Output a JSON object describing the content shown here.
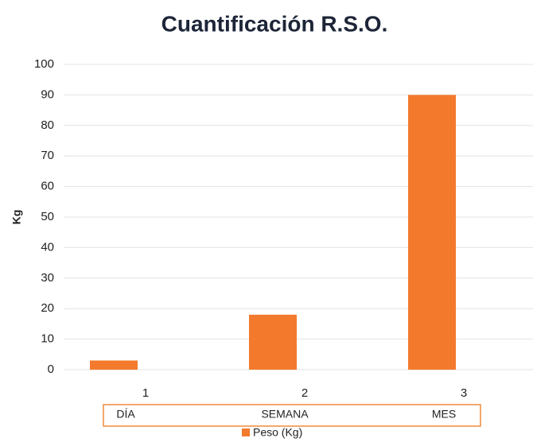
{
  "chart_data": {
    "type": "bar",
    "title": "Cuantificación R.S.O.",
    "y_label": "Kg",
    "categories": [
      "1",
      "2",
      "3"
    ],
    "category_labels": [
      "DÍA",
      "SEMANA",
      "MES"
    ],
    "series": [
      {
        "name": "Peso (Kg)",
        "color": "#f37a2c",
        "values": [
          3,
          18,
          90
        ]
      }
    ],
    "ylim": [
      0,
      100
    ],
    "yticks": [
      0,
      10,
      20,
      30,
      40,
      50,
      60,
      70,
      80,
      90,
      100
    ],
    "grid": true,
    "legend": "bottom"
  }
}
